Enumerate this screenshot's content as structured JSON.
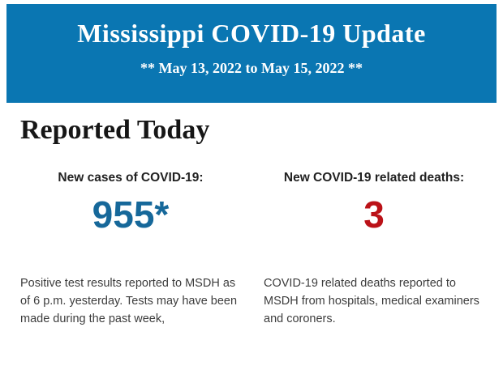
{
  "header": {
    "title": "Mississippi COVID-19 Update",
    "subtitle": "** May 13, 2022 to May 15, 2022 **",
    "bg_color": "#0a76b2",
    "text_color": "#ffffff"
  },
  "main": {
    "heading": "Reported Today",
    "stats": [
      {
        "label": "New cases of COVID-19:",
        "value": "955*",
        "value_color": "#16689a",
        "description": "Positive test results reported to MSDH as of 6 p.m. yesterday. Tests may have been made during the past week,"
      },
      {
        "label": "New COVID-19 related deaths:",
        "value": "3",
        "value_color": "#bb1218",
        "description": "COVID-19 related deaths reported to MSDH from hospitals, medical examiners and coroners."
      }
    ]
  }
}
